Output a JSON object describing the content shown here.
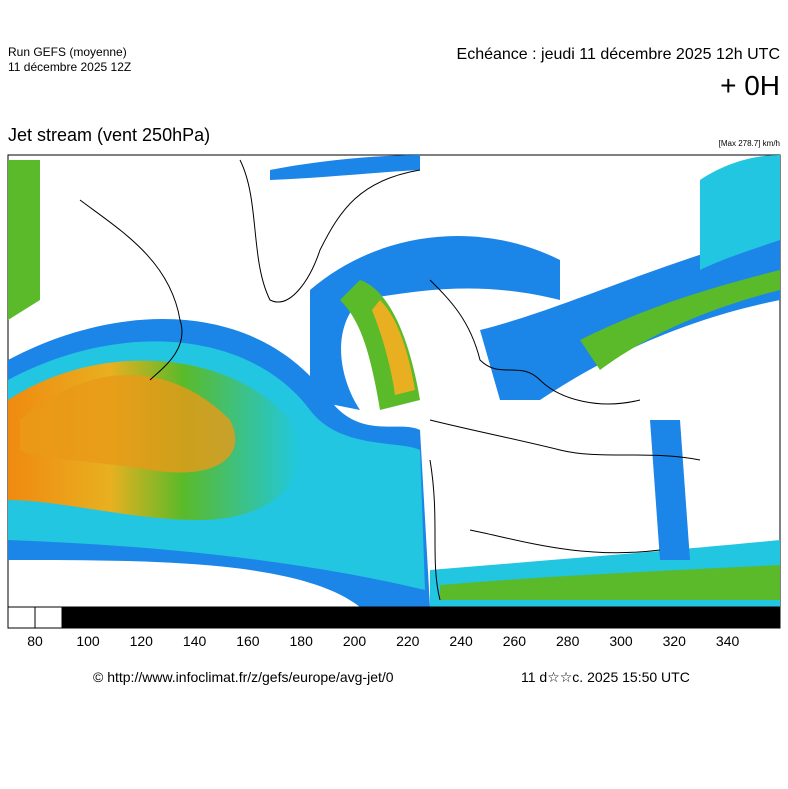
{
  "header": {
    "run": "Run GEFS (moyenne)",
    "run_date": "11 décembre 2025 12Z",
    "valid": "Echéance : jeudi 11 décembre 2025 12h UTC",
    "lead": "+ 0H"
  },
  "map": {
    "title": "Jet stream (vent 250hPa)",
    "max": "[Max 278.7] km/h"
  },
  "colorbar": {
    "ticks": [
      80,
      100,
      120,
      140,
      160,
      180,
      200,
      220,
      240,
      260,
      280,
      300,
      320,
      340
    ]
  },
  "footer": {
    "source": "© http://www.infoclimat.fr/z/gefs/europe/avg-jet/0",
    "generated": "11 d☆☆c. 2025 15:50 UTC"
  }
}
